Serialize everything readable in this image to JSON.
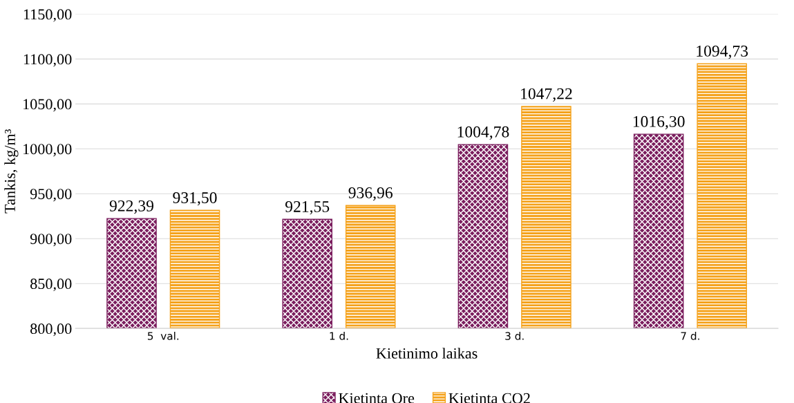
{
  "chart_data": {
    "type": "bar",
    "xlabel": "Kietinimo laikas",
    "ylabel": "Tankis, kg/m³",
    "categories": [
      "5  val.",
      "1 d.",
      "3 d.",
      "7 d."
    ],
    "series": [
      {
        "name": "Kietinta Ore",
        "color": "#7b1e5e",
        "values": [
          922.39,
          921.55,
          1004.78,
          1016.3
        ],
        "value_labels": [
          "922,39",
          "921,55",
          "1004,78",
          "1016,30"
        ]
      },
      {
        "name": "Kietinta CO2",
        "color": "#f5a21b",
        "values": [
          931.5,
          936.96,
          1047.22,
          1094.73
        ],
        "value_labels": [
          "931,50",
          "936,96",
          "1047,22",
          "1094,73"
        ]
      }
    ],
    "ylim": [
      800,
      1150
    ],
    "yticks": [
      {
        "value": 800,
        "label": "800,00"
      },
      {
        "value": 850,
        "label": "850,00"
      },
      {
        "value": 900,
        "label": "900,00"
      },
      {
        "value": 950,
        "label": "950,00"
      },
      {
        "value": 1000,
        "label": "1000,00"
      },
      {
        "value": 1050,
        "label": "1050,00"
      },
      {
        "value": 1100,
        "label": "1100,00"
      },
      {
        "value": 1150,
        "label": "1150,00"
      }
    ],
    "grid": "y",
    "legend": "bottom"
  }
}
